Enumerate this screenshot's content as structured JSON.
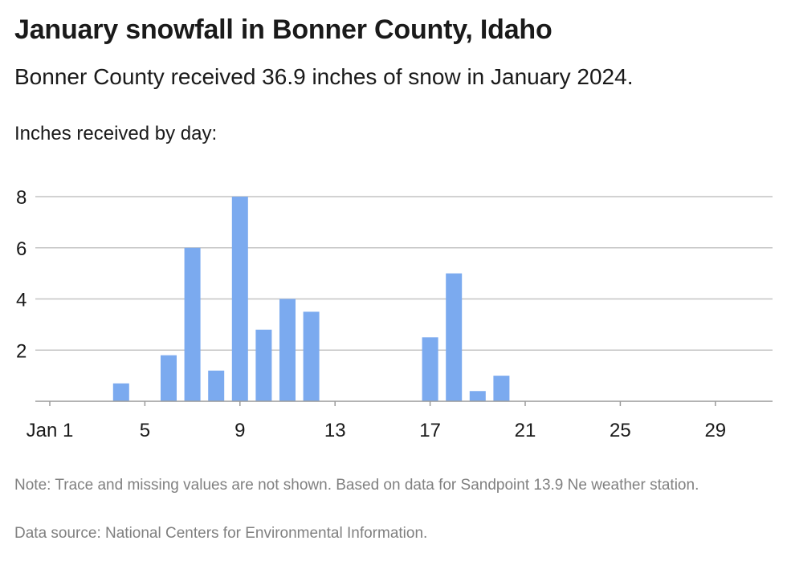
{
  "header": {
    "title": "January snowfall in Bonner County, Idaho",
    "subtitle": "Bonner County received 36.9 inches of snow in January 2024.",
    "unit_label": "Inches received by day:"
  },
  "footer": {
    "note": "Note: Trace and missing values are not shown. Based on data for Sandpoint 13.9 Ne weather station.",
    "source": "Data source: National Centers for Environmental Information."
  },
  "chart_data": {
    "type": "bar",
    "title": "January snowfall in Bonner County, Idaho",
    "ylabel": "Inches received by day:",
    "xlabel": "",
    "ylim": [
      0,
      8
    ],
    "xlim": [
      1,
      31
    ],
    "grid": true,
    "bar_color": "#7baaef",
    "x_ticks": [
      {
        "day": 1,
        "label": "Jan 1"
      },
      {
        "day": 5,
        "label": "5"
      },
      {
        "day": 9,
        "label": "9"
      },
      {
        "day": 13,
        "label": "13"
      },
      {
        "day": 17,
        "label": "17"
      },
      {
        "day": 21,
        "label": "21"
      },
      {
        "day": 25,
        "label": "25"
      },
      {
        "day": 29,
        "label": "29"
      }
    ],
    "y_ticks": [
      2,
      4,
      6,
      8
    ],
    "points": [
      {
        "day": 4,
        "value": 0.7
      },
      {
        "day": 6,
        "value": 1.8
      },
      {
        "day": 7,
        "value": 6.0
      },
      {
        "day": 8,
        "value": 1.2
      },
      {
        "day": 9,
        "value": 8.0
      },
      {
        "day": 10,
        "value": 2.8
      },
      {
        "day": 11,
        "value": 4.0
      },
      {
        "day": 12,
        "value": 3.5
      },
      {
        "day": 17,
        "value": 2.5
      },
      {
        "day": 18,
        "value": 5.0
      },
      {
        "day": 19,
        "value": 0.4
      },
      {
        "day": 20,
        "value": 1.0
      }
    ]
  }
}
